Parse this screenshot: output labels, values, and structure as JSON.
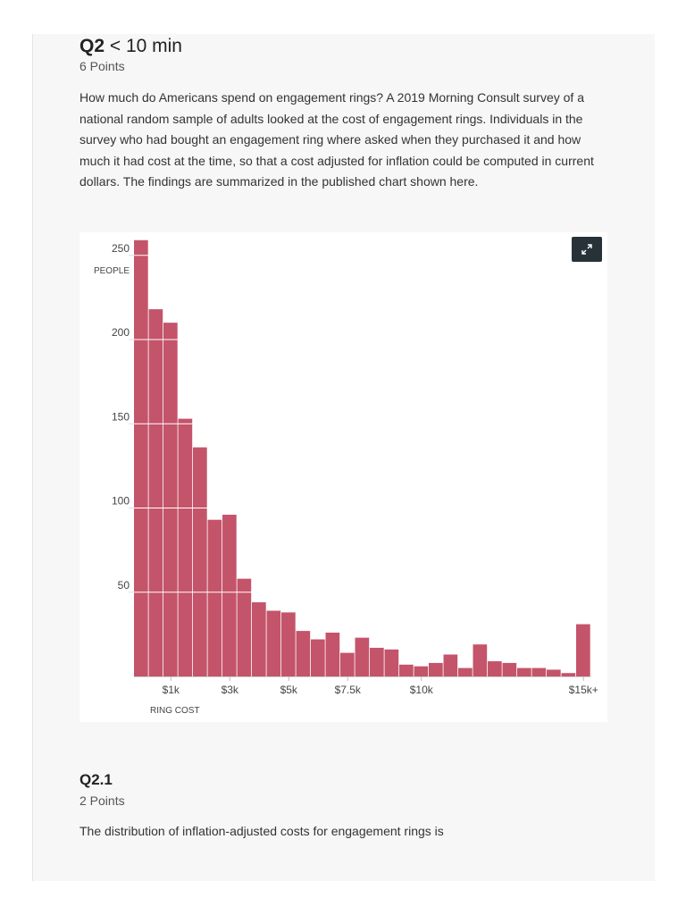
{
  "question": {
    "id": "Q2",
    "time_hint": "< 10 min",
    "points": "6 Points",
    "prompt": "How much do Americans spend on engagement rings? A 2019 Morning Consult survey of a national random sample of adults looked at the cost of engagement rings. Individuals in the survey who had bought an engagement ring where asked when they purchased it and how much it had cost at the time, so that a cost adjusted for inflation could be computed in current dollars. The findings are summarized in the published chart shown here."
  },
  "expand_icon": "expand-icon",
  "colors": {
    "bar": "#c4546a",
    "panel": "#f7f7f7",
    "button": "#263238"
  },
  "chart_data": {
    "type": "bar",
    "title": "",
    "ylabel": "PEOPLE",
    "xlabel": "RING COST",
    "ylim": [
      0,
      260
    ],
    "yticks": [
      50,
      100,
      150,
      200,
      250
    ],
    "xticks": [
      {
        "label": "$1k",
        "bin": 2
      },
      {
        "label": "$3k",
        "bin": 6
      },
      {
        "label": "$5k",
        "bin": 10
      },
      {
        "label": "$7.5k",
        "bin": 14
      },
      {
        "label": "$10k",
        "bin": 19
      },
      {
        "label": "$15k+",
        "bin": 30
      }
    ],
    "values": [
      259,
      218,
      210,
      153,
      136,
      93,
      96,
      58,
      44,
      39,
      38,
      27,
      22,
      26,
      14,
      23,
      17,
      16,
      7,
      6,
      8,
      13,
      5,
      19,
      9,
      8,
      5,
      5,
      4,
      2,
      31
    ]
  },
  "subquestion": {
    "id": "Q2.1",
    "points": "2 Points",
    "prompt": "The distribution of inflation-adjusted costs for engagement rings is"
  }
}
